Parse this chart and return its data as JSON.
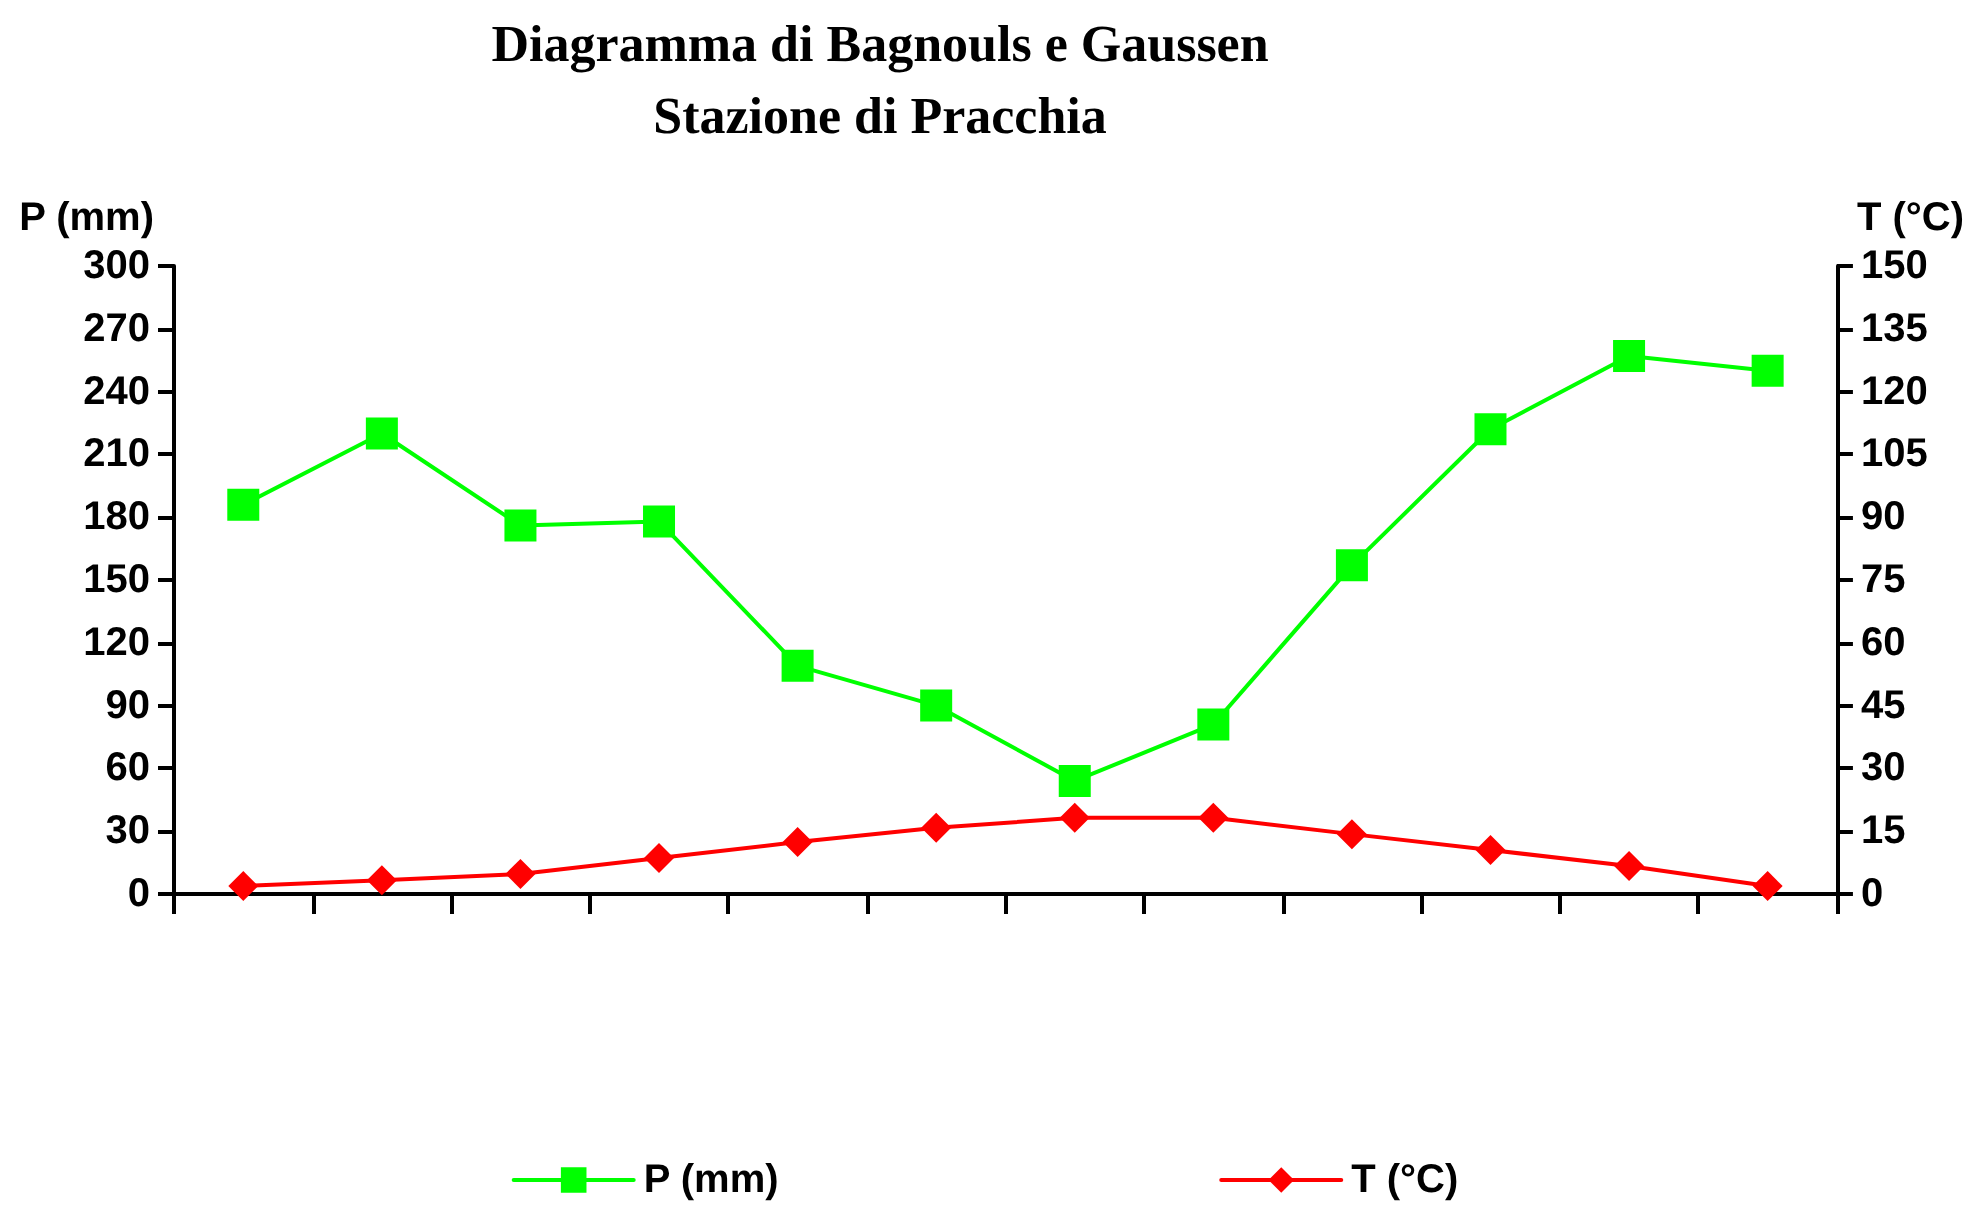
{
  "chart_data": {
    "type": "line",
    "title": "Diagramma di Bagnouls e Gaussen",
    "subtitle": "Stazione di Pracchia",
    "ylabel": "P (mm)",
    "y2label": "T (°C)",
    "categories": [
      null,
      null,
      null,
      null,
      null,
      null,
      null,
      null,
      null,
      null,
      null,
      null
    ],
    "series": [
      {
        "name": "P (mm)",
        "color": "#00ff00",
        "marker": "square",
        "values": [
          186,
          220,
          176,
          178,
          109,
          90,
          54,
          81,
          157,
          222,
          257,
          250
        ]
      },
      {
        "name": "T (°C)",
        "color": "#ff0000",
        "marker": "diamond",
        "axis": "y2",
        "values": [
          1.9,
          3.3,
          4.8,
          8.6,
          12.4,
          15.8,
          18.2,
          18.2,
          14.3,
          10.5,
          6.7,
          1.9
        ]
      }
    ],
    "ylim": [
      0,
      300
    ],
    "yticks": [
      0,
      30,
      60,
      90,
      120,
      150,
      180,
      210,
      240,
      270,
      300
    ],
    "y2lim": [
      0,
      150
    ],
    "y2ticks": [
      0,
      15,
      30,
      45,
      60,
      75,
      90,
      105,
      120,
      135,
      150
    ],
    "grid": false,
    "legend": "bottom",
    "line_style": "solid"
  }
}
